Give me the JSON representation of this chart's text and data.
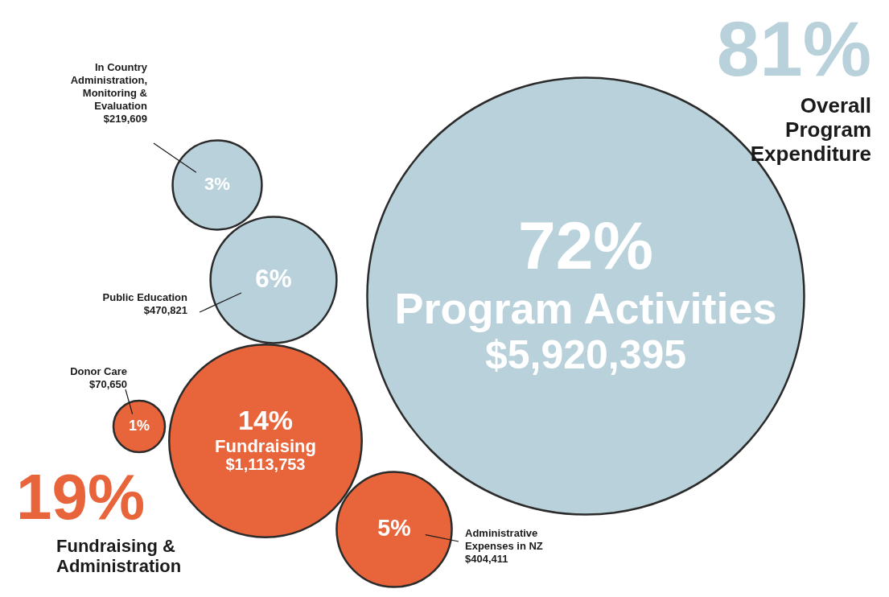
{
  "chart_data": {
    "type": "other",
    "categories": [
      "Program Activities",
      "In Country Administration, Monitoring & Evaluation",
      "Public Education",
      "Donor Care",
      "Fundraising",
      "Administrative Expenses in NZ"
    ],
    "values": [
      72,
      3,
      6,
      1,
      14,
      5
    ],
    "value_labels": [
      "72%",
      "3%",
      "6%",
      "1%",
      "14%",
      "5%"
    ],
    "colors": [
      "#b9d1db",
      "#b9d1db",
      "#b9d1db",
      "#e8653c",
      "#e8653c",
      "#e8653c"
    ],
    "annotations": [
      {
        "text": "$5,920,395",
        "x": "Program Activities"
      },
      {
        "text": "$219,609",
        "x": "In Country Administration, Monitoring & Evaluation"
      },
      {
        "text": "$470,821",
        "x": "Public Education"
      },
      {
        "text": "$70,650",
        "x": "Donor Care"
      },
      {
        "text": "$1,113,753",
        "x": "Fundraising"
      },
      {
        "text": "$404,411",
        "x": "Administrative Expenses in NZ"
      },
      "81%",
      "Overall Program Expenditure",
      "19%",
      "Fundraising & Administration"
    ]
  }
}
